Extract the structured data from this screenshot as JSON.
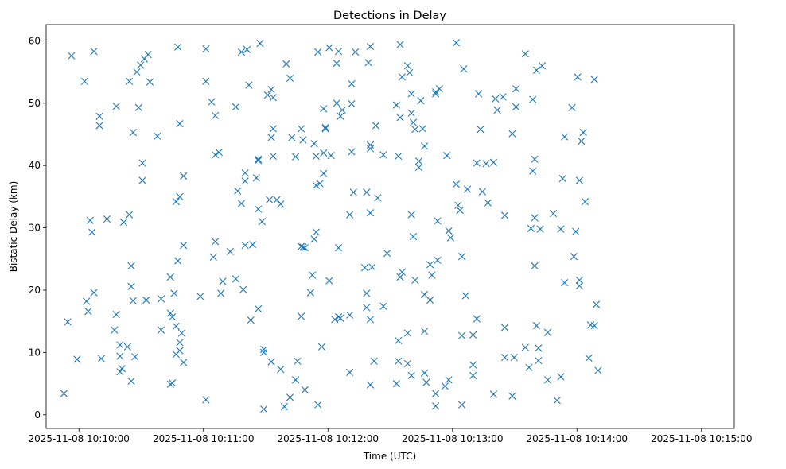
{
  "chart_data": {
    "type": "scatter",
    "title": "Detections in Delay",
    "xlabel": "Time (UTC)",
    "ylabel": "Bistatic Delay (km)",
    "x_units": "seconds after 2025-11-08 10:10:00 UTC",
    "xlim": [
      -15.8,
      315.8
    ],
    "ylim": [
      -2.2,
      62.6
    ],
    "xticks": [
      {
        "value": 0,
        "label": "2025-11-08 10:10:00"
      },
      {
        "value": 60,
        "label": "2025-11-08 10:11:00"
      },
      {
        "value": 120,
        "label": "2025-11-08 10:12:00"
      },
      {
        "value": 180,
        "label": "2025-11-08 10:13:00"
      },
      {
        "value": 240,
        "label": "2025-11-08 10:14:00"
      },
      {
        "value": 300,
        "label": "2025-11-08 10:15:00"
      }
    ],
    "yticks": [
      {
        "value": 0,
        "label": "0"
      },
      {
        "value": 10,
        "label": "10"
      },
      {
        "value": 20,
        "label": "20"
      },
      {
        "value": 30,
        "label": "30"
      },
      {
        "value": 40,
        "label": "40"
      },
      {
        "value": 50,
        "label": "50"
      },
      {
        "value": 60,
        "label": "60"
      }
    ],
    "marker": "x",
    "color": "#1f77b4",
    "grid": false,
    "points": [
      [
        -7.2,
        3.4
      ],
      [
        -5.4,
        14.9
      ],
      [
        -3.6,
        57.6
      ],
      [
        -0.9,
        8.9
      ],
      [
        2.7,
        53.5
      ],
      [
        3.6,
        18.2
      ],
      [
        4.5,
        16.6
      ],
      [
        5.4,
        31.2
      ],
      [
        6.3,
        29.3
      ],
      [
        7.2,
        19.6
      ],
      [
        7.2,
        58.3
      ],
      [
        9.9,
        46.4
      ],
      [
        9.9,
        47.9
      ],
      [
        10.8,
        9.0
      ],
      [
        13.5,
        31.4
      ],
      [
        17.1,
        13.6
      ],
      [
        18.0,
        49.5
      ],
      [
        18.0,
        16.1
      ],
      [
        19.8,
        11.2
      ],
      [
        19.8,
        9.4
      ],
      [
        19.8,
        6.9
      ],
      [
        20.7,
        7.4
      ],
      [
        21.6,
        30.9
      ],
      [
        23.4,
        10.9
      ],
      [
        24.3,
        53.5
      ],
      [
        24.3,
        32.1
      ],
      [
        25.2,
        20.6
      ],
      [
        25.2,
        23.9
      ],
      [
        25.2,
        5.4
      ],
      [
        26.1,
        45.3
      ],
      [
        26.1,
        18.3
      ],
      [
        27.0,
        9.3
      ],
      [
        27.9,
        55.0
      ],
      [
        28.8,
        49.3
      ],
      [
        29.7,
        56.1
      ],
      [
        30.6,
        40.4
      ],
      [
        30.6,
        37.6
      ],
      [
        31.5,
        57.1
      ],
      [
        32.4,
        18.4
      ],
      [
        33.3,
        57.8
      ],
      [
        34.2,
        53.4
      ],
      [
        37.8,
        44.7
      ],
      [
        39.6,
        13.6
      ],
      [
        39.6,
        18.6
      ],
      [
        44.1,
        16.3
      ],
      [
        44.1,
        4.9
      ],
      [
        44.1,
        22.1
      ],
      [
        45.0,
        15.7
      ],
      [
        45.0,
        5.1
      ],
      [
        45.9,
        19.5
      ],
      [
        46.8,
        34.2
      ],
      [
        46.8,
        9.7
      ],
      [
        46.8,
        14.2
      ],
      [
        47.7,
        59.0
      ],
      [
        47.7,
        24.7
      ],
      [
        48.6,
        10.3
      ],
      [
        48.6,
        11.6
      ],
      [
        48.6,
        35.0
      ],
      [
        48.6,
        46.7
      ],
      [
        49.5,
        13.1
      ],
      [
        50.4,
        8.4
      ],
      [
        50.4,
        27.2
      ],
      [
        50.4,
        38.3
      ],
      [
        58.5,
        19.0
      ],
      [
        61.2,
        2.4
      ],
      [
        61.2,
        58.7
      ],
      [
        61.2,
        53.5
      ],
      [
        63.9,
        50.2
      ],
      [
        64.8,
        25.3
      ],
      [
        65.7,
        27.8
      ],
      [
        65.7,
        41.7
      ],
      [
        65.7,
        48.0
      ],
      [
        67.5,
        42.1
      ],
      [
        68.4,
        19.5
      ],
      [
        69.3,
        21.4
      ],
      [
        72.9,
        26.2
      ],
      [
        75.6,
        21.8
      ],
      [
        75.6,
        49.4
      ],
      [
        76.5,
        35.9
      ],
      [
        78.3,
        33.9
      ],
      [
        78.3,
        58.2
      ],
      [
        79.2,
        20.1
      ],
      [
        80.1,
        38.8
      ],
      [
        80.1,
        37.5
      ],
      [
        80.1,
        27.2
      ],
      [
        81.0,
        58.6
      ],
      [
        81.9,
        52.9
      ],
      [
        82.8,
        15.2
      ],
      [
        83.7,
        27.3
      ],
      [
        85.5,
        38.0
      ],
      [
        86.4,
        40.8
      ],
      [
        86.4,
        41.0
      ],
      [
        86.4,
        33.0
      ],
      [
        86.4,
        17.0
      ],
      [
        87.3,
        59.6
      ],
      [
        88.2,
        31.0
      ],
      [
        89.1,
        10.5
      ],
      [
        89.1,
        10.0
      ],
      [
        89.1,
        0.9
      ],
      [
        90.9,
        51.3
      ],
      [
        91.8,
        34.5
      ],
      [
        92.7,
        52.2
      ],
      [
        92.7,
        44.5
      ],
      [
        92.7,
        8.5
      ],
      [
        93.6,
        45.9
      ],
      [
        93.6,
        50.9
      ],
      [
        93.6,
        41.5
      ],
      [
        95.4,
        34.5
      ],
      [
        97.2,
        33.8
      ],
      [
        97.2,
        7.3
      ],
      [
        99.0,
        1.3
      ],
      [
        99.9,
        56.3
      ],
      [
        101.7,
        2.8
      ],
      [
        101.7,
        54.0
      ],
      [
        102.6,
        44.5
      ],
      [
        104.4,
        41.4
      ],
      [
        104.4,
        5.6
      ],
      [
        105.3,
        8.6
      ],
      [
        107.1,
        27.0
      ],
      [
        107.1,
        15.8
      ],
      [
        107.1,
        45.9
      ],
      [
        108.0,
        44.1
      ],
      [
        108.0,
        26.9
      ],
      [
        108.9,
        4.0
      ],
      [
        108.9,
        26.8
      ],
      [
        111.6,
        19.6
      ],
      [
        112.5,
        22.4
      ],
      [
        113.4,
        43.5
      ],
      [
        113.4,
        28.2
      ],
      [
        114.3,
        36.8
      ],
      [
        114.3,
        29.3
      ],
      [
        114.3,
        41.5
      ],
      [
        115.2,
        58.2
      ],
      [
        115.2,
        1.6
      ],
      [
        116.1,
        37.1
      ],
      [
        117.0,
        10.9
      ],
      [
        117.9,
        42.0
      ],
      [
        117.9,
        38.7
      ],
      [
        117.9,
        49.1
      ],
      [
        118.8,
        45.9
      ],
      [
        118.8,
        46.1
      ],
      [
        120.6,
        58.9
      ],
      [
        120.6,
        21.5
      ],
      [
        121.5,
        41.6
      ],
      [
        123.3,
        15.3
      ],
      [
        124.2,
        56.4
      ],
      [
        124.2,
        50.0
      ],
      [
        125.1,
        58.3
      ],
      [
        125.1,
        15.7
      ],
      [
        125.1,
        26.8
      ],
      [
        126.0,
        15.5
      ],
      [
        126.0,
        47.9
      ],
      [
        126.9,
        48.9
      ],
      [
        130.5,
        16.0
      ],
      [
        130.5,
        32.1
      ],
      [
        130.5,
        6.8
      ],
      [
        131.4,
        42.2
      ],
      [
        131.4,
        53.1
      ],
      [
        131.4,
        49.9
      ],
      [
        132.3,
        35.7
      ],
      [
        133.2,
        58.2
      ],
      [
        137.7,
        23.6
      ],
      [
        138.6,
        17.2
      ],
      [
        138.6,
        35.7
      ],
      [
        138.6,
        19.5
      ],
      [
        139.5,
        56.5
      ],
      [
        140.4,
        59.1
      ],
      [
        140.4,
        4.8
      ],
      [
        140.4,
        15.3
      ],
      [
        140.4,
        43.3
      ],
      [
        140.4,
        42.7
      ],
      [
        140.4,
        32.4
      ],
      [
        141.3,
        23.7
      ],
      [
        142.2,
        8.6
      ],
      [
        143.1,
        46.4
      ],
      [
        144.0,
        34.8
      ],
      [
        146.7,
        41.7
      ],
      [
        146.7,
        17.4
      ],
      [
        148.5,
        25.9
      ],
      [
        153.0,
        5.0
      ],
      [
        153.0,
        49.7
      ],
      [
        153.9,
        8.6
      ],
      [
        153.9,
        11.9
      ],
      [
        153.9,
        41.5
      ],
      [
        154.8,
        59.4
      ],
      [
        154.8,
        22.1
      ],
      [
        154.8,
        47.7
      ],
      [
        155.7,
        54.2
      ],
      [
        155.7,
        22.9
      ],
      [
        158.4,
        56.0
      ],
      [
        158.4,
        13.1
      ],
      [
        158.4,
        8.2
      ],
      [
        159.3,
        54.9
      ],
      [
        160.2,
        51.5
      ],
      [
        160.2,
        48.4
      ],
      [
        160.2,
        32.1
      ],
      [
        160.2,
        6.3
      ],
      [
        161.1,
        46.9
      ],
      [
        161.1,
        28.6
      ],
      [
        162.0,
        21.6
      ],
      [
        162.0,
        45.8
      ],
      [
        163.8,
        40.7
      ],
      [
        163.8,
        39.7
      ],
      [
        164.7,
        50.4
      ],
      [
        165.6,
        45.9
      ],
      [
        166.5,
        43.1
      ],
      [
        166.5,
        19.3
      ],
      [
        166.5,
        13.4
      ],
      [
        166.5,
        6.7
      ],
      [
        167.4,
        5.2
      ],
      [
        169.2,
        24.1
      ],
      [
        169.2,
        18.4
      ],
      [
        170.1,
        22.4
      ],
      [
        171.9,
        51.5
      ],
      [
        171.9,
        51.8
      ],
      [
        171.9,
        3.4
      ],
      [
        171.9,
        1.4
      ],
      [
        172.8,
        24.8
      ],
      [
        172.8,
        31.1
      ],
      [
        173.7,
        52.3
      ],
      [
        176.4,
        4.6
      ],
      [
        177.3,
        41.6
      ],
      [
        178.2,
        5.6
      ],
      [
        178.2,
        29.5
      ],
      [
        179.1,
        28.4
      ],
      [
        181.8,
        37.0
      ],
      [
        181.8,
        59.7
      ],
      [
        182.7,
        33.6
      ],
      [
        183.6,
        32.8
      ],
      [
        184.5,
        25.4
      ],
      [
        184.5,
        12.7
      ],
      [
        184.5,
        1.6
      ],
      [
        185.4,
        55.5
      ],
      [
        186.3,
        19.1
      ],
      [
        187.2,
        36.2
      ],
      [
        189.9,
        12.8
      ],
      [
        189.9,
        8.0
      ],
      [
        189.9,
        6.3
      ],
      [
        191.7,
        40.4
      ],
      [
        191.7,
        15.4
      ],
      [
        192.6,
        51.5
      ],
      [
        193.5,
        45.8
      ],
      [
        194.4,
        35.8
      ],
      [
        196.2,
        40.3
      ],
      [
        197.1,
        34.0
      ],
      [
        199.8,
        3.3
      ],
      [
        199.8,
        40.5
      ],
      [
        200.7,
        50.7
      ],
      [
        201.6,
        48.9
      ],
      [
        204.3,
        51.0
      ],
      [
        205.2,
        32.0
      ],
      [
        205.2,
        9.2
      ],
      [
        205.2,
        14.0
      ],
      [
        208.8,
        45.1
      ],
      [
        208.8,
        3.0
      ],
      [
        209.7,
        9.2
      ],
      [
        210.6,
        52.3
      ],
      [
        210.6,
        49.4
      ],
      [
        215.1,
        57.9
      ],
      [
        215.1,
        10.8
      ],
      [
        216.9,
        7.6
      ],
      [
        217.8,
        29.9
      ],
      [
        218.7,
        50.6
      ],
      [
        218.7,
        39.1
      ],
      [
        219.6,
        41.0
      ],
      [
        219.6,
        23.9
      ],
      [
        219.6,
        31.6
      ],
      [
        220.5,
        14.3
      ],
      [
        220.5,
        55.3
      ],
      [
        221.4,
        10.7
      ],
      [
        221.4,
        8.7
      ],
      [
        222.3,
        29.8
      ],
      [
        223.2,
        56.0
      ],
      [
        225.9,
        5.6
      ],
      [
        225.9,
        13.2
      ],
      [
        228.6,
        32.3
      ],
      [
        230.4,
        2.3
      ],
      [
        232.2,
        6.1
      ],
      [
        232.2,
        29.8
      ],
      [
        233.1,
        37.9
      ],
      [
        234.0,
        21.2
      ],
      [
        234.0,
        44.6
      ],
      [
        237.6,
        49.3
      ],
      [
        238.5,
        25.4
      ],
      [
        239.4,
        29.4
      ],
      [
        240.3,
        54.2
      ],
      [
        241.2,
        20.7
      ],
      [
        241.2,
        21.6
      ],
      [
        241.2,
        37.6
      ],
      [
        242.1,
        43.9
      ],
      [
        243.0,
        45.3
      ],
      [
        243.9,
        34.2
      ],
      [
        245.7,
        9.1
      ],
      [
        246.6,
        14.4
      ],
      [
        248.4,
        14.3
      ],
      [
        248.4,
        53.8
      ],
      [
        249.3,
        17.7
      ],
      [
        250.2,
        7.1
      ]
    ]
  }
}
